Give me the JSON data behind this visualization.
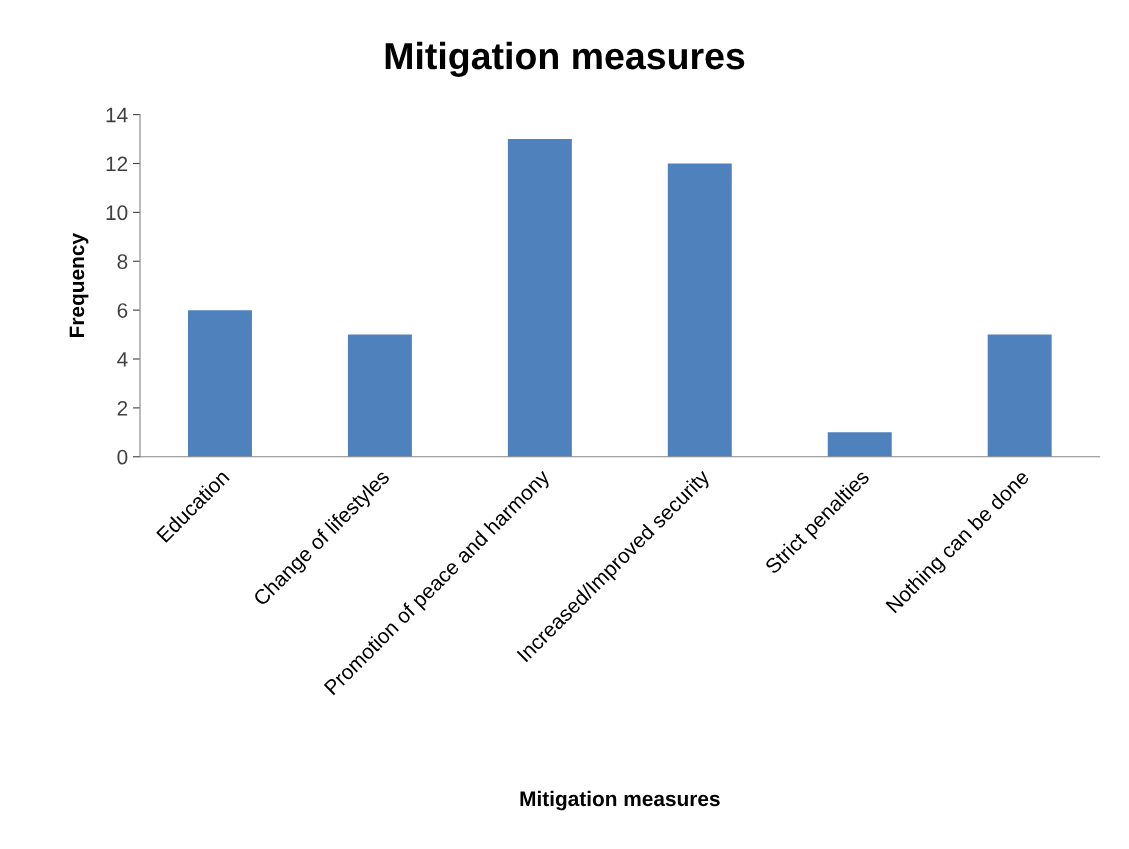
{
  "chart_data": {
    "type": "bar",
    "title": "Mitigation measures",
    "xlabel": "Mitigation measures",
    "ylabel": "Frequency",
    "categories": [
      "Education",
      "Change of lifestyles",
      "Promotion of peace and harmony",
      "Increased/Improved security",
      "Strict penalties",
      "Nothing can be done"
    ],
    "values": [
      6,
      5,
      13,
      12,
      1,
      5
    ],
    "color": "#4f81bd",
    "ylim": [
      0,
      14
    ],
    "yticks": [
      0,
      2,
      4,
      6,
      8,
      10,
      12,
      14
    ],
    "grid": false,
    "legend": false
  }
}
